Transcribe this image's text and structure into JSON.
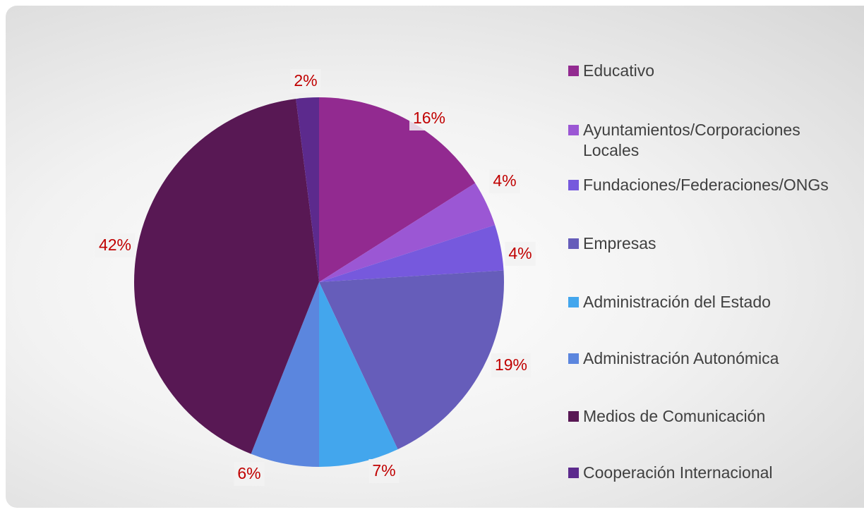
{
  "chart_data": {
    "type": "pie",
    "categories": [
      "Educativo",
      "Ayuntamientos/Corporaciones Locales",
      "Fundaciones/Federaciones/ONGs",
      "Empresas",
      "Administración del Estado",
      "Administración Autonómica",
      "Medios de Comunicación",
      "Cooperación Internacional"
    ],
    "values": [
      16,
      4,
      4,
      19,
      7,
      6,
      42,
      2
    ],
    "value_labels": [
      "16%",
      "4%",
      "4%",
      "19%",
      "7%",
      "6%",
      "42%",
      "2%"
    ],
    "colors": [
      "#922a90",
      "#9b57d4",
      "#7659dd",
      "#665dba",
      "#43a6ed",
      "#5b86de",
      "#581854",
      "#5c2a8d"
    ],
    "legend": "right"
  }
}
